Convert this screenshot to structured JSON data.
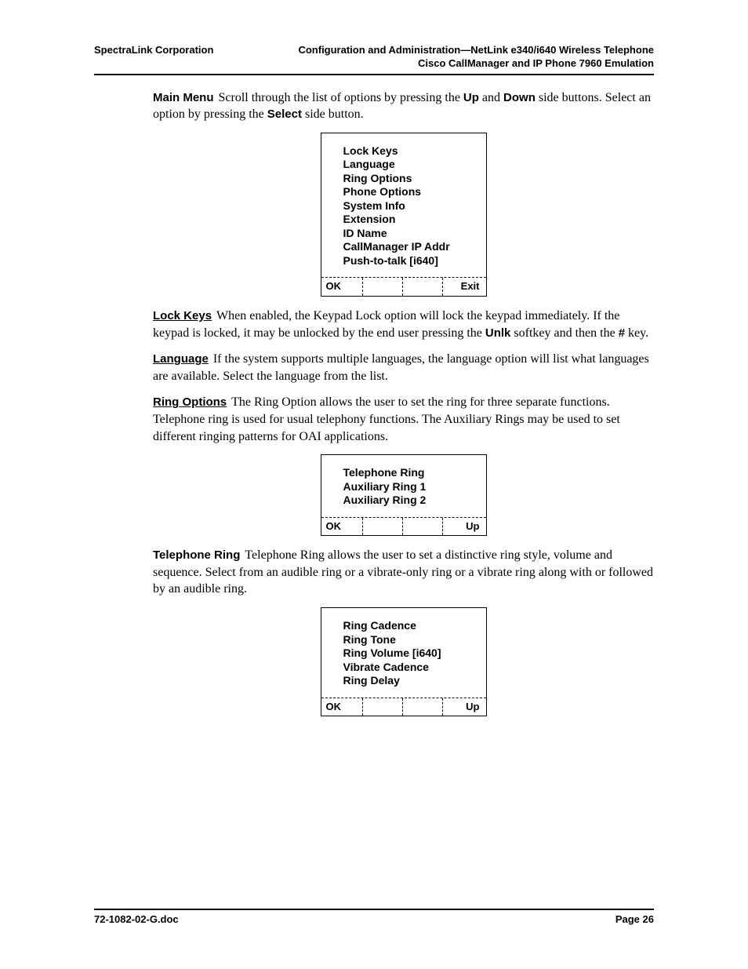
{
  "header": {
    "left": "SpectraLink Corporation",
    "right1": "Configuration and Administration—NetLink e340/i640 Wireless Telephone",
    "right2": "Cisco CallManager and IP Phone 7960 Emulation"
  },
  "paragraphs": {
    "main_menu_heading": "Main Menu",
    "main_menu_body_a": "Scroll through the list of options by pressing the ",
    "up_label": "Up",
    "and_word": " and ",
    "down_label": "Down",
    "main_menu_body_b": " side buttons. Select an option by pressing the ",
    "select_label": "Select",
    "main_menu_body_c": " side button.",
    "lock_keys_heading": "Lock Keys",
    "lock_keys_body_a": "When enabled, the Keypad Lock option will lock the keypad immediately. If the keypad is locked, it may be unlocked by the end user pressing the ",
    "unlk_label": "Unlk",
    "lock_keys_body_b": " softkey and then the ",
    "hash_label": "#",
    "lock_keys_body_c": " key.",
    "language_heading": "Language",
    "language_body": "If the system supports multiple languages, the language option will list what languages are available. Select the language from the list.",
    "ring_options_heading": "Ring Options",
    "ring_options_body": "The Ring Option allows the user to set the ring for three separate functions. Telephone ring is used for usual telephony functions. The Auxiliary Rings may be used to set different ringing patterns for OAI applications.",
    "telephone_ring_heading": "Telephone Ring",
    "telephone_ring_body": "Telephone Ring allows the user to set a distinctive ring style, volume and sequence. Select from an audible ring or a vibrate-only ring or a vibrate ring along with or followed by an audible ring."
  },
  "menus": {
    "main": {
      "items": [
        "Lock Keys",
        "Language",
        "Ring Options",
        "Phone Options",
        "System Info",
        "Extension",
        "ID Name",
        "CallManager IP Addr",
        "Push-to-talk [i640]"
      ],
      "softkeys": [
        "OK",
        "",
        "",
        "Exit"
      ]
    },
    "ring_options": {
      "items": [
        "Telephone Ring",
        "Auxiliary Ring 1",
        "Auxiliary Ring 2"
      ],
      "softkeys": [
        "OK",
        "",
        "",
        "Up"
      ]
    },
    "telephone_ring": {
      "items": [
        "Ring Cadence",
        "Ring Tone",
        "Ring Volume [i640]",
        "Vibrate Cadence",
        "Ring Delay"
      ],
      "softkeys": [
        "OK",
        "",
        "",
        "Up"
      ]
    }
  },
  "footer": {
    "doc": "72-1082-02-G.doc",
    "page": "Page 26"
  }
}
